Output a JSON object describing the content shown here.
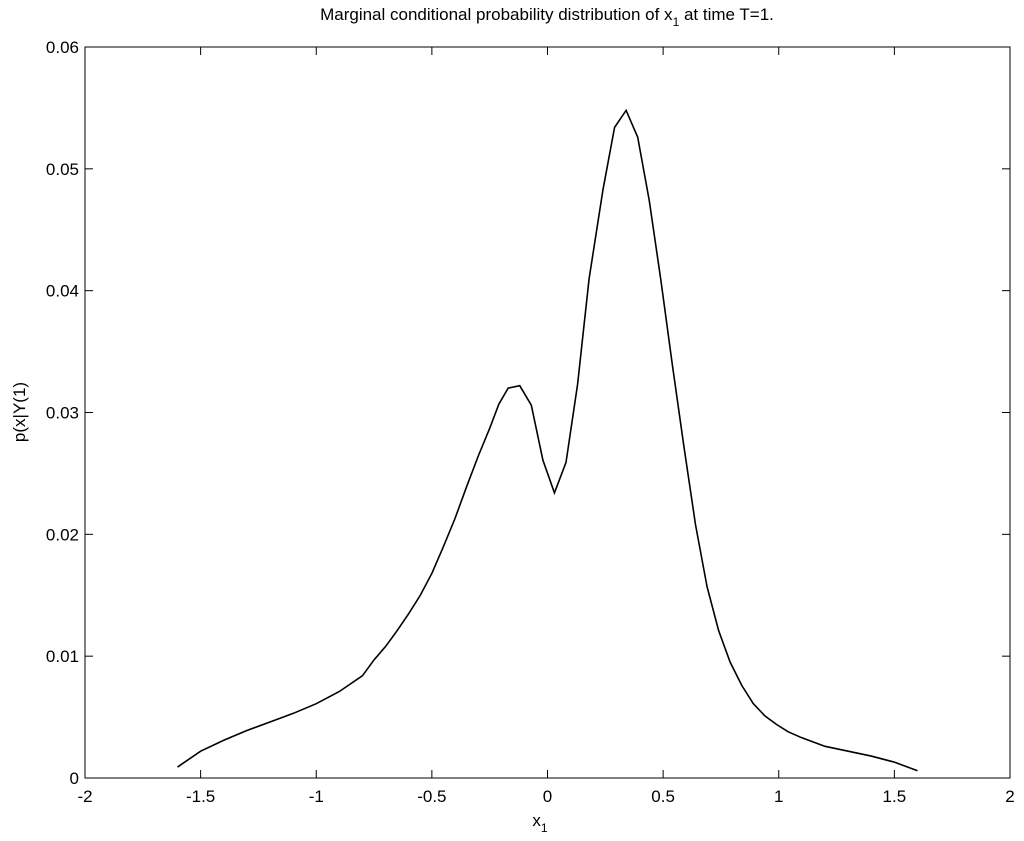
{
  "chart_data": {
    "type": "line",
    "title": [
      "Marginal conditional probability distribution of x",
      "1",
      " at time T=1."
    ],
    "xlabel": [
      "x",
      "1"
    ],
    "ylabel": "p(x|Y(1)",
    "x": [
      -1.6,
      -1.5,
      -1.4,
      -1.3,
      -1.2,
      -1.1,
      -1.0,
      -0.9,
      -0.8,
      -0.75,
      -0.7,
      -0.65,
      -0.6,
      -0.55,
      -0.5,
      -0.45,
      -0.4,
      -0.35,
      -0.3,
      -0.25,
      -0.21,
      -0.17,
      -0.12,
      -0.07,
      -0.02,
      0.03,
      0.08,
      0.13,
      0.18,
      0.24,
      0.29,
      0.34,
      0.39,
      0.44,
      0.49,
      0.54,
      0.59,
      0.64,
      0.69,
      0.74,
      0.79,
      0.84,
      0.89,
      0.94,
      0.99,
      1.04,
      1.1,
      1.2,
      1.3,
      1.4,
      1.5,
      1.6
    ],
    "series": [
      {
        "color": "#000000",
        "values": [
          0.0009,
          0.0022,
          0.0031,
          0.0039,
          0.0046,
          0.0053,
          0.0061,
          0.0071,
          0.0084,
          0.0097,
          0.0108,
          0.0121,
          0.0135,
          0.015,
          0.0168,
          0.019,
          0.0213,
          0.0239,
          0.0264,
          0.0287,
          0.0307,
          0.032,
          0.0322,
          0.0306,
          0.0261,
          0.0234,
          0.0259,
          0.0323,
          0.041,
          0.0483,
          0.0534,
          0.0548,
          0.0526,
          0.0474,
          0.0409,
          0.0339,
          0.0272,
          0.0208,
          0.0157,
          0.0121,
          0.0095,
          0.0076,
          0.0061,
          0.0051,
          0.0044,
          0.0038,
          0.0033,
          0.0026,
          0.0022,
          0.0018,
          0.0013,
          0.0006
        ]
      }
    ],
    "xlim": [
      -2,
      2
    ],
    "xticks": [
      -2,
      -1.5,
      -1,
      -0.5,
      0,
      0.5,
      1,
      1.5,
      2
    ],
    "ylim": [
      0,
      0.06
    ],
    "yticks": [
      0,
      0.01,
      0.02,
      0.03,
      0.04,
      0.05,
      0.06
    ],
    "grid": false
  }
}
